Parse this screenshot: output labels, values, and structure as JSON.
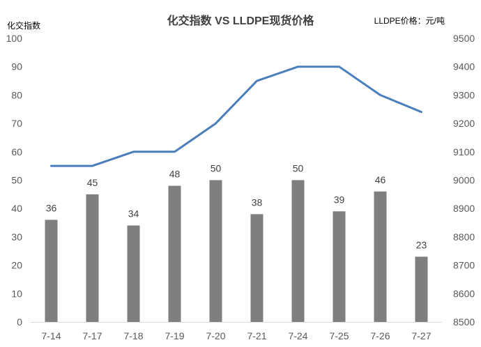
{
  "chart_data": {
    "type": "bar",
    "title": "化交指数 VS LLDPE现货价格",
    "left_axis_label": "化交指数",
    "right_axis_label": "LLDPE价格：元/吨",
    "categories": [
      "7-14",
      "7-17",
      "7-18",
      "7-19",
      "7-20",
      "7-21",
      "7-24",
      "7-25",
      "7-26",
      "7-27"
    ],
    "series": [
      {
        "type": "bar",
        "axis": "left",
        "values": [
          36,
          45,
          34,
          48,
          50,
          38,
          50,
          39,
          46,
          23
        ],
        "color": "#7f7f7f"
      },
      {
        "type": "line",
        "axis": "right",
        "values": [
          9050,
          9050,
          9100,
          9100,
          9200,
          9350,
          9400,
          9400,
          9300,
          9240
        ],
        "color": "#4a7ebb"
      }
    ],
    "ylim_left": [
      0,
      100
    ],
    "yticks_left": [
      "0",
      "10",
      "20",
      "30",
      "40",
      "50",
      "60",
      "70",
      "80",
      "90",
      "100"
    ],
    "ylim_right": [
      8500,
      9500
    ],
    "yticks_right": [
      "8500",
      "8600",
      "8700",
      "8800",
      "8900",
      "9000",
      "9100",
      "9200",
      "9300",
      "9400",
      "9500"
    ],
    "grid": false,
    "data_labels": true
  }
}
